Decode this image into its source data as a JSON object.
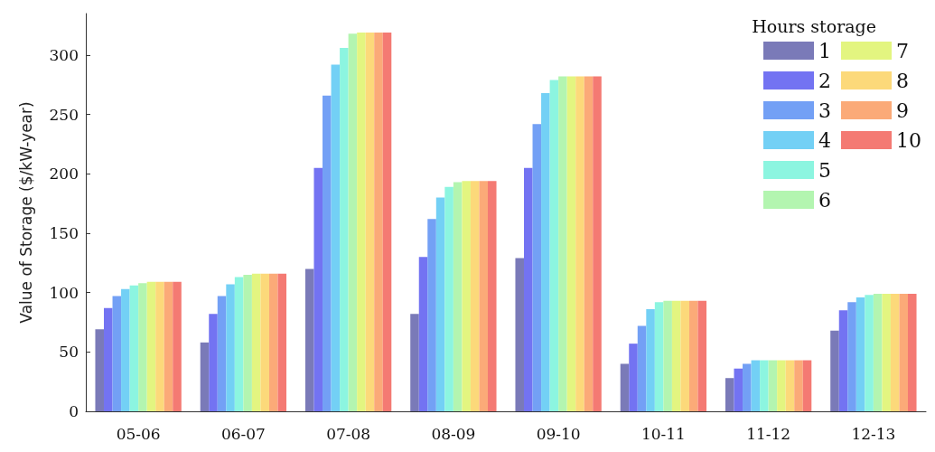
{
  "chart_data": {
    "type": "bar",
    "ylabel": "Value of Storage ($/kW-year)",
    "legend_title": "Hours storage",
    "categories": [
      "05-06",
      "06-07",
      "07-08",
      "08-09",
      "09-10",
      "10-11",
      "11-12",
      "12-13"
    ],
    "ylim": [
      0,
      335
    ],
    "yticks": [
      0,
      50,
      100,
      150,
      200,
      250,
      300
    ],
    "grid": false,
    "legend": "top right",
    "series": [
      {
        "name": "1",
        "color": "#7a7ab8",
        "values": [
          69,
          58,
          120,
          82,
          129,
          40,
          28,
          68
        ]
      },
      {
        "name": "2",
        "color": "#7373f2",
        "values": [
          87,
          82,
          205,
          130,
          205,
          57,
          36,
          85
        ]
      },
      {
        "name": "3",
        "color": "#73a0f5",
        "values": [
          97,
          97,
          266,
          162,
          242,
          72,
          40,
          92
        ]
      },
      {
        "name": "4",
        "color": "#73d0f5",
        "values": [
          103,
          107,
          292,
          180,
          268,
          86,
          43,
          96
        ]
      },
      {
        "name": "5",
        "color": "#8cf5e0",
        "values": [
          106,
          113,
          306,
          189,
          279,
          92,
          43,
          98
        ]
      },
      {
        "name": "6",
        "color": "#b3f5b0",
        "values": [
          108,
          115,
          318,
          193,
          282,
          93,
          43,
          99
        ]
      },
      {
        "name": "7",
        "color": "#e3f580",
        "values": [
          109,
          116,
          319,
          194,
          282,
          93,
          43,
          99
        ]
      },
      {
        "name": "8",
        "color": "#fcd97a",
        "values": [
          109,
          116,
          319,
          194,
          282,
          93,
          43,
          99
        ]
      },
      {
        "name": "9",
        "color": "#fbaa78",
        "values": [
          109,
          116,
          319,
          194,
          282,
          93,
          43,
          99
        ]
      },
      {
        "name": "10",
        "color": "#f47a73",
        "values": [
          109,
          116,
          319,
          194,
          282,
          93,
          43,
          99
        ]
      }
    ]
  }
}
